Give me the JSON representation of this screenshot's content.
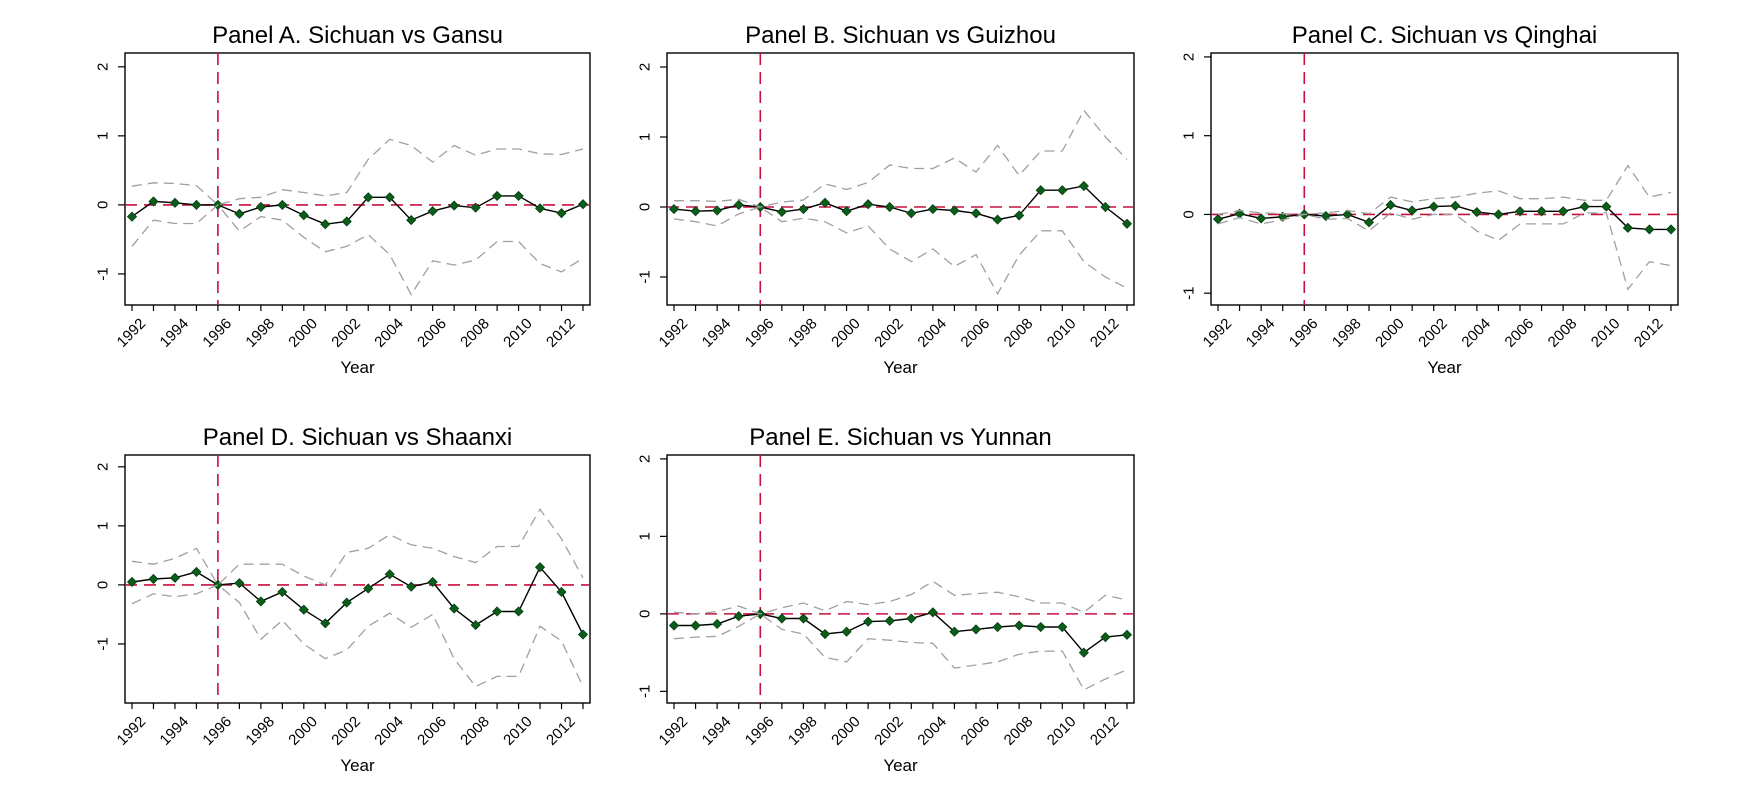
{
  "chart_data": [
    {
      "type": "line",
      "title": "Panel A. Sichuan vs Gansu",
      "xlabel": "Year",
      "ylabel": "",
      "xlim": [
        1992,
        2013
      ],
      "ylim": [
        -1.45,
        2.2
      ],
      "yticks": [
        -1,
        0,
        1,
        2
      ],
      "xticks": [
        1992,
        1994,
        1996,
        1998,
        2000,
        2002,
        2004,
        2006,
        2008,
        2010,
        2012
      ],
      "reference_vline": 1996,
      "reference_hline": 0,
      "x": [
        1992,
        1993,
        1994,
        1995,
        1996,
        1997,
        1998,
        1999,
        2000,
        2001,
        2002,
        2003,
        2004,
        2005,
        2006,
        2007,
        2008,
        2009,
        2010,
        2011,
        2012,
        2013
      ],
      "series": [
        {
          "role": "estimate",
          "values": [
            -0.17,
            0.05,
            0.03,
            0.0,
            0.0,
            -0.13,
            -0.03,
            0.0,
            -0.15,
            -0.28,
            -0.24,
            0.11,
            0.11,
            -0.22,
            -0.09,
            -0.01,
            -0.04,
            0.13,
            0.13,
            -0.05,
            -0.12,
            0.01
          ]
        },
        {
          "role": "upper-ci",
          "values": [
            0.27,
            0.32,
            0.31,
            0.28,
            0.0,
            0.09,
            0.11,
            0.22,
            0.18,
            0.13,
            0.18,
            0.66,
            0.95,
            0.86,
            0.62,
            0.86,
            0.72,
            0.81,
            0.81,
            0.74,
            0.73,
            0.81
          ]
        },
        {
          "role": "lower-ci",
          "values": [
            -0.6,
            -0.22,
            -0.27,
            -0.27,
            0.0,
            -0.38,
            -0.17,
            -0.22,
            -0.47,
            -0.68,
            -0.6,
            -0.43,
            -0.72,
            -1.3,
            -0.81,
            -0.87,
            -0.8,
            -0.53,
            -0.53,
            -0.85,
            -0.97,
            -0.77
          ]
        }
      ]
    },
    {
      "type": "line",
      "title": "Panel B. Sichuan vs Guizhou",
      "xlabel": "Year",
      "ylabel": "",
      "xlim": [
        1992,
        2013
      ],
      "ylim": [
        -1.4,
        2.2
      ],
      "yticks": [
        -1,
        0,
        1,
        2
      ],
      "xticks": [
        1992,
        1994,
        1996,
        1998,
        2000,
        2002,
        2004,
        2006,
        2008,
        2010,
        2012
      ],
      "reference_vline": 1996,
      "reference_hline": 0,
      "x": [
        1992,
        1993,
        1994,
        1995,
        1996,
        1997,
        1998,
        1999,
        2000,
        2001,
        2002,
        2003,
        2004,
        2005,
        2006,
        2007,
        2008,
        2009,
        2010,
        2011,
        2012,
        2013
      ],
      "series": [
        {
          "role": "estimate",
          "values": [
            -0.03,
            -0.06,
            -0.05,
            0.03,
            0.0,
            -0.07,
            -0.03,
            0.06,
            -0.06,
            0.04,
            0.0,
            -0.09,
            -0.03,
            -0.05,
            -0.09,
            -0.18,
            -0.12,
            0.24,
            0.24,
            0.3,
            0.0,
            -0.24
          ]
        },
        {
          "role": "upper-ci",
          "values": [
            0.09,
            0.09,
            0.08,
            0.11,
            0.0,
            0.07,
            0.1,
            0.33,
            0.25,
            0.35,
            0.6,
            0.55,
            0.55,
            0.7,
            0.5,
            0.88,
            0.45,
            0.8,
            0.8,
            1.38,
            1.0,
            0.68
          ]
        },
        {
          "role": "lower-ci",
          "values": [
            -0.17,
            -0.21,
            -0.27,
            -0.1,
            0.0,
            -0.21,
            -0.16,
            -0.21,
            -0.37,
            -0.27,
            -0.6,
            -0.78,
            -0.6,
            -0.85,
            -0.68,
            -1.24,
            -0.69,
            -0.34,
            -0.34,
            -0.78,
            -1.0,
            -1.16
          ]
        }
      ]
    },
    {
      "type": "line",
      "title": "Panel C. Sichuan vs Qinghai",
      "xlabel": "Year",
      "ylabel": "",
      "xlim": [
        1992,
        2013
      ],
      "ylim": [
        -1.15,
        2.05
      ],
      "yticks": [
        -1,
        0,
        1,
        2
      ],
      "xticks": [
        1992,
        1994,
        1996,
        1998,
        2000,
        2002,
        2004,
        2006,
        2008,
        2010,
        2012
      ],
      "reference_vline": 1996,
      "reference_hline": 0,
      "x": [
        1992,
        1993,
        1994,
        1995,
        1996,
        1997,
        1998,
        1999,
        2000,
        2001,
        2002,
        2003,
        2004,
        2005,
        2006,
        2007,
        2008,
        2009,
        2010,
        2011,
        2012,
        2013
      ],
      "series": [
        {
          "role": "estimate",
          "values": [
            -0.06,
            0.01,
            -0.05,
            -0.03,
            0.0,
            -0.02,
            0.0,
            -0.1,
            0.12,
            0.05,
            0.1,
            0.11,
            0.03,
            0.0,
            0.04,
            0.04,
            0.04,
            0.1,
            0.1,
            -0.17,
            -0.19,
            -0.19
          ]
        },
        {
          "role": "upper-ci",
          "values": [
            0.0,
            0.05,
            0.02,
            0.01,
            0.0,
            0.02,
            0.05,
            0.01,
            0.22,
            0.16,
            0.2,
            0.22,
            0.27,
            0.3,
            0.2,
            0.2,
            0.22,
            0.18,
            0.18,
            0.62,
            0.22,
            0.28
          ]
        },
        {
          "role": "lower-ci",
          "values": [
            -0.12,
            -0.04,
            -0.12,
            -0.07,
            0.0,
            -0.06,
            -0.05,
            -0.21,
            0.02,
            -0.06,
            0.0,
            0.0,
            -0.21,
            -0.33,
            -0.12,
            -0.12,
            -0.12,
            0.02,
            0.02,
            -0.95,
            -0.6,
            -0.65
          ]
        }
      ]
    },
    {
      "type": "line",
      "title": "Panel D. Sichuan vs Shaanxi",
      "xlabel": "Year",
      "ylabel": "",
      "xlim": [
        1992,
        2013
      ],
      "ylim": [
        -2.0,
        2.2
      ],
      "yticks": [
        -1,
        0,
        1,
        2
      ],
      "xticks": [
        1992,
        1994,
        1996,
        1998,
        2000,
        2002,
        2004,
        2006,
        2008,
        2010,
        2012
      ],
      "reference_vline": 1996,
      "reference_hline": 0,
      "x": [
        1992,
        1993,
        1994,
        1995,
        1996,
        1997,
        1998,
        1999,
        2000,
        2001,
        2002,
        2003,
        2004,
        2005,
        2006,
        2007,
        2008,
        2009,
        2010,
        2011,
        2012,
        2013
      ],
      "series": [
        {
          "role": "estimate",
          "values": [
            0.05,
            0.1,
            0.12,
            0.22,
            0.0,
            0.03,
            -0.28,
            -0.12,
            -0.42,
            -0.65,
            -0.3,
            -0.06,
            0.18,
            -0.03,
            0.05,
            -0.4,
            -0.68,
            -0.45,
            -0.45,
            0.3,
            -0.12,
            -0.84
          ]
        },
        {
          "role": "upper-ci",
          "values": [
            0.4,
            0.35,
            0.45,
            0.62,
            0.0,
            0.35,
            0.35,
            0.35,
            0.15,
            0.0,
            0.55,
            0.62,
            0.85,
            0.68,
            0.62,
            0.48,
            0.38,
            0.65,
            0.65,
            1.28,
            0.78,
            0.12
          ]
        },
        {
          "role": "lower-ci",
          "values": [
            -0.32,
            -0.15,
            -0.2,
            -0.15,
            0.0,
            -0.3,
            -0.92,
            -0.6,
            -1.0,
            -1.25,
            -1.1,
            -0.7,
            -0.48,
            -0.72,
            -0.5,
            -1.25,
            -1.72,
            -1.55,
            -1.55,
            -0.7,
            -0.95,
            -1.72
          ]
        }
      ]
    },
    {
      "type": "line",
      "title": "Panel E. Sichuan vs Yunnan",
      "xlabel": "Year",
      "ylabel": "",
      "xlim": [
        1992,
        2013
      ],
      "ylim": [
        -1.15,
        2.05
      ],
      "yticks": [
        -1,
        0,
        1,
        2
      ],
      "xticks": [
        1992,
        1994,
        1996,
        1998,
        2000,
        2002,
        2004,
        2006,
        2008,
        2010,
        2012
      ],
      "reference_vline": 1996,
      "reference_hline": 0,
      "x": [
        1992,
        1993,
        1994,
        1995,
        1996,
        1997,
        1998,
        1999,
        2000,
        2001,
        2002,
        2003,
        2004,
        2005,
        2006,
        2007,
        2008,
        2009,
        2010,
        2011,
        2012,
        2013
      ],
      "series": [
        {
          "role": "estimate",
          "values": [
            -0.15,
            -0.15,
            -0.13,
            -0.03,
            0.0,
            -0.06,
            -0.06,
            -0.26,
            -0.23,
            -0.1,
            -0.09,
            -0.06,
            0.02,
            -0.23,
            -0.2,
            -0.17,
            -0.15,
            -0.17,
            -0.17,
            -0.5,
            -0.3,
            -0.27
          ]
        },
        {
          "role": "upper-ci",
          "values": [
            0.02,
            0.0,
            0.03,
            0.1,
            0.0,
            0.08,
            0.14,
            0.04,
            0.16,
            0.12,
            0.16,
            0.25,
            0.42,
            0.24,
            0.26,
            0.28,
            0.22,
            0.14,
            0.14,
            0.02,
            0.24,
            0.18
          ]
        },
        {
          "role": "lower-ci",
          "values": [
            -0.32,
            -0.3,
            -0.29,
            -0.16,
            0.0,
            -0.2,
            -0.26,
            -0.56,
            -0.62,
            -0.32,
            -0.34,
            -0.37,
            -0.38,
            -0.7,
            -0.66,
            -0.62,
            -0.52,
            -0.48,
            -0.48,
            -0.98,
            -0.84,
            -0.72
          ]
        }
      ]
    }
  ]
}
